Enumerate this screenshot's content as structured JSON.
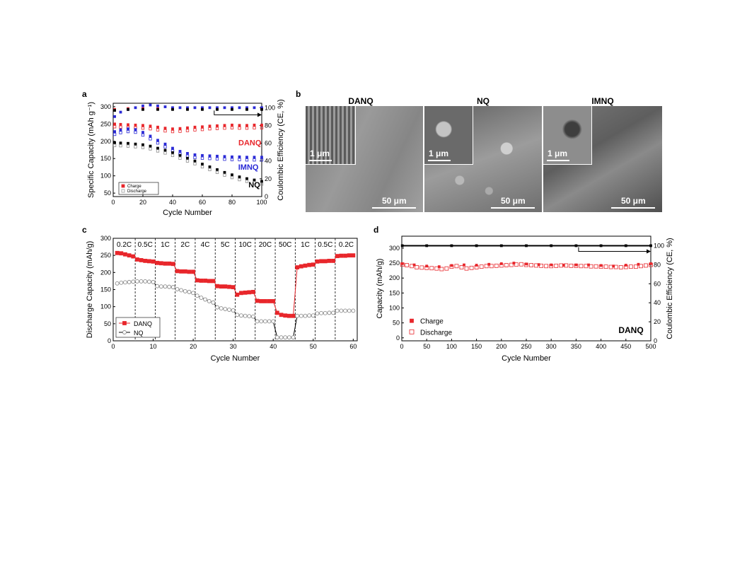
{
  "panels": {
    "a": "a",
    "b": "b",
    "c": "c",
    "d": "d"
  },
  "colors": {
    "danq": "#e8262b",
    "nq": "#000000",
    "imnq": "#2a2ad6",
    "nq_open": "#8c8c8c"
  },
  "chart_data": [
    {
      "id": "a",
      "type": "scatter",
      "xlabel": "Cycle Number",
      "ylabel": "Specific Capacity (mAh g⁻¹)",
      "ylabel2": "Coulombic Efficiency (CE, %)",
      "xlim": [
        0,
        100
      ],
      "ylim": [
        40,
        310
      ],
      "ylim2": [
        0,
        105
      ],
      "xticks": [
        0,
        20,
        40,
        60,
        80,
        100
      ],
      "yticks": [
        50,
        100,
        150,
        200,
        250,
        300
      ],
      "yticks2": [
        0,
        20,
        40,
        60,
        80,
        100
      ],
      "legend": {
        "position": "bottom-left",
        "entries": [
          "Charge",
          "Discharge"
        ]
      },
      "series_labels": [
        "DANQ",
        "IMNQ",
        "NQ"
      ],
      "series": [
        {
          "name": "DANQ",
          "kind": "capacity",
          "x": [
            1,
            5,
            10,
            15,
            20,
            25,
            30,
            35,
            40,
            45,
            50,
            55,
            60,
            65,
            70,
            75,
            80,
            85,
            90,
            95,
            100
          ],
          "y": [
            250,
            249,
            248,
            247,
            246,
            244,
            241,
            238,
            236,
            237,
            239,
            241,
            242,
            244,
            245,
            246,
            247,
            246,
            246,
            247,
            247
          ]
        },
        {
          "name": "IMNQ",
          "kind": "capacity",
          "x": [
            1,
            5,
            10,
            15,
            20,
            25,
            30,
            35,
            40,
            45,
            50,
            55,
            60,
            65,
            70,
            75,
            80,
            85,
            90,
            95,
            100
          ],
          "y": [
            228,
            233,
            236,
            234,
            226,
            215,
            203,
            192,
            180,
            171,
            165,
            161,
            159,
            158,
            157,
            156,
            155,
            155,
            154,
            154,
            154
          ]
        },
        {
          "name": "NQ",
          "kind": "capacity",
          "x": [
            1,
            5,
            10,
            15,
            20,
            25,
            30,
            35,
            40,
            45,
            50,
            55,
            60,
            65,
            70,
            75,
            80,
            85,
            90,
            95,
            100
          ],
          "y": [
            196,
            195,
            194,
            192,
            190,
            186,
            180,
            174,
            167,
            159,
            151,
            143,
            134,
            126,
            118,
            110,
            103,
            97,
            92,
            88,
            84
          ]
        },
        {
          "name": "DANQ",
          "kind": "CE",
          "x": [
            1,
            10,
            20,
            30,
            40,
            50,
            60,
            70,
            80,
            90,
            100
          ],
          "y": [
            98,
            99,
            99,
            99,
            99,
            99,
            99,
            99,
            99,
            99,
            99
          ]
        },
        {
          "name": "IMNQ",
          "kind": "CE",
          "x": [
            1,
            5,
            10,
            15,
            20,
            25,
            30,
            35,
            40,
            45,
            50,
            55,
            60,
            65,
            70,
            75,
            80,
            85,
            90,
            95,
            100
          ],
          "y": [
            90,
            95,
            98,
            100,
            102,
            103,
            102,
            101,
            100,
            100,
            100,
            100,
            100,
            100,
            100,
            100,
            100,
            100,
            100,
            100,
            100
          ]
        },
        {
          "name": "NQ",
          "kind": "CE",
          "x": [
            1,
            10,
            20,
            30,
            40,
            50,
            60,
            70,
            80,
            90,
            100
          ],
          "y": [
            97,
            98,
            98,
            98,
            98,
            98,
            98,
            98,
            98,
            98,
            98
          ]
        }
      ]
    },
    {
      "id": "c",
      "type": "line",
      "xlabel": "Cycle Number",
      "ylabel": "Discharge Capacity (mAh/g)",
      "xlim": [
        0,
        61
      ],
      "ylim": [
        0,
        300
      ],
      "xticks": [
        0,
        10,
        20,
        30,
        40,
        50,
        60
      ],
      "yticks": [
        0,
        50,
        100,
        150,
        200,
        250,
        300
      ],
      "rate_labels": [
        "0.2C",
        "0.5C",
        "1C",
        "2C",
        "4C",
        "5C",
        "10C",
        "20C",
        "50C",
        "1C",
        "0.5C",
        "0.2C"
      ],
      "rate_dividers": [
        5.5,
        10.5,
        15.5,
        20.5,
        25.5,
        30.5,
        35.5,
        40.5,
        45.5,
        50.5,
        55.5
      ],
      "legend": {
        "position": "bottom-left"
      },
      "series": [
        {
          "name": "DANQ",
          "x": [
            1,
            2,
            3,
            4,
            5,
            6,
            7,
            8,
            9,
            10,
            11,
            12,
            13,
            14,
            15,
            16,
            17,
            18,
            19,
            20,
            21,
            22,
            23,
            24,
            25,
            26,
            27,
            28,
            29,
            30,
            31,
            32,
            33,
            34,
            35,
            36,
            37,
            38,
            39,
            40,
            41,
            42,
            43,
            44,
            45,
            46,
            47,
            48,
            49,
            50,
            51,
            52,
            53,
            54,
            55,
            56,
            57,
            58,
            59,
            60
          ],
          "y": [
            257,
            256,
            253,
            250,
            247,
            238,
            236,
            234,
            233,
            232,
            228,
            227,
            226,
            226,
            225,
            204,
            203,
            203,
            202,
            202,
            177,
            176,
            176,
            175,
            175,
            160,
            159,
            159,
            158,
            157,
            135,
            140,
            141,
            142,
            143,
            117,
            116,
            116,
            116,
            116,
            82,
            76,
            74,
            73,
            73,
            215,
            218,
            220,
            222,
            223,
            232,
            233,
            233,
            234,
            234,
            248,
            249,
            249,
            250,
            250
          ]
        },
        {
          "name": "NQ",
          "x": [
            1,
            2,
            3,
            4,
            5,
            6,
            7,
            8,
            9,
            10,
            11,
            12,
            13,
            14,
            15,
            16,
            17,
            18,
            19,
            20,
            21,
            22,
            23,
            24,
            25,
            26,
            27,
            28,
            29,
            30,
            31,
            32,
            33,
            34,
            35,
            36,
            37,
            38,
            39,
            40,
            41,
            42,
            43,
            44,
            45,
            46,
            47,
            48,
            49,
            50,
            51,
            52,
            53,
            54,
            55,
            56,
            57,
            58,
            59,
            60
          ],
          "y": [
            168,
            170,
            171,
            172,
            173,
            174,
            174,
            174,
            173,
            172,
            160,
            159,
            159,
            158,
            157,
            151,
            148,
            145,
            143,
            140,
            132,
            126,
            121,
            116,
            112,
            98,
            95,
            93,
            91,
            89,
            76,
            74,
            73,
            72,
            71,
            57,
            57,
            57,
            57,
            57,
            10,
            10,
            10,
            10,
            10,
            73,
            73,
            73,
            74,
            74,
            80,
            81,
            81,
            82,
            82,
            88,
            88,
            88,
            88,
            88
          ]
        }
      ]
    },
    {
      "id": "d",
      "type": "scatter",
      "xlabel": "Cycle Number",
      "ylabel": "Capacity (mAh/g)",
      "ylabel2": "Coulombic Efficiency (CE, %)",
      "xlim": [
        0,
        500
      ],
      "ylim": [
        -10,
        340
      ],
      "ylim2": [
        0,
        110
      ],
      "xticks": [
        0,
        50,
        100,
        150,
        200,
        250,
        300,
        350,
        400,
        450,
        500
      ],
      "yticks": [
        0,
        50,
        100,
        150,
        200,
        250,
        300
      ],
      "yticks2": [
        0,
        20,
        40,
        60,
        80,
        100
      ],
      "legend": {
        "position": "bottom-left",
        "entries": [
          "Charge",
          "Discharge"
        ]
      },
      "annotation": "DANQ",
      "series": [
        {
          "name": "Charge",
          "kind": "capacity",
          "x": [
            1,
            25,
            50,
            75,
            100,
            125,
            150,
            175,
            200,
            225,
            250,
            275,
            300,
            325,
            350,
            375,
            400,
            425,
            450,
            475,
            500
          ],
          "y": [
            248,
            244,
            240,
            238,
            242,
            244,
            243,
            246,
            248,
            250,
            247,
            245,
            244,
            243,
            244,
            244,
            242,
            240,
            243,
            246,
            248
          ]
        },
        {
          "name": "Discharge",
          "kind": "capacity",
          "x": [
            1,
            10,
            20,
            30,
            40,
            50,
            60,
            70,
            80,
            90,
            100,
            110,
            120,
            130,
            140,
            150,
            160,
            170,
            180,
            190,
            200,
            210,
            220,
            230,
            240,
            250,
            260,
            270,
            280,
            290,
            300,
            310,
            320,
            330,
            340,
            350,
            360,
            370,
            380,
            390,
            400,
            410,
            420,
            430,
            440,
            450,
            460,
            470,
            480,
            490,
            500
          ],
          "y": [
            245,
            243,
            240,
            236,
            235,
            234,
            233,
            232,
            230,
            232,
            238,
            240,
            236,
            232,
            234,
            236,
            238,
            240,
            240,
            241,
            242,
            243,
            244,
            245,
            246,
            244,
            243,
            242,
            241,
            240,
            240,
            241,
            242,
            242,
            241,
            241,
            240,
            240,
            239,
            239,
            238,
            238,
            237,
            237,
            236,
            237,
            238,
            238,
            240,
            242,
            244
          ]
        },
        {
          "name": "CE",
          "kind": "CE",
          "x": [
            1,
            50,
            100,
            150,
            200,
            250,
            300,
            350,
            400,
            450,
            500
          ],
          "y": [
            100,
            100,
            100,
            100,
            100,
            100,
            100,
            100,
            100,
            100,
            100
          ]
        }
      ]
    }
  ],
  "sem": {
    "titles": [
      "DANQ",
      "NQ",
      "IMNQ"
    ],
    "inset_scale": "1 μm",
    "main_scale": "50 μm"
  }
}
